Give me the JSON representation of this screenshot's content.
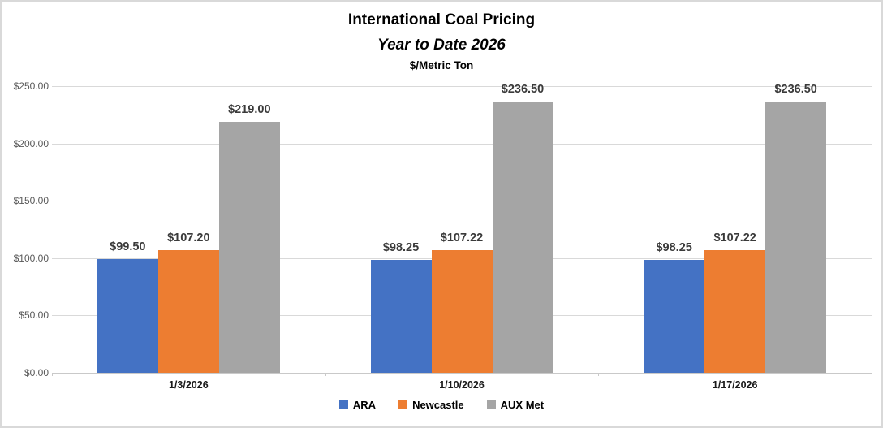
{
  "title": "International Coal Pricing",
  "subtitle": "Year to Date 2026",
  "units_label": "$/Metric Ton",
  "colors": {
    "ara": "#4472C4",
    "newcastle": "#ED7D31",
    "aux_met": "#A5A5A5",
    "gridline": "#D9D9D9",
    "axis_line": "#C9C9C9",
    "y_axis_text": "#595959",
    "data_label_text": "#3A3A3A",
    "background": "#FFFFFF",
    "border": "#D9D9D9"
  },
  "chart_data": {
    "type": "bar",
    "title": "International Coal Pricing",
    "subtitle": "Year to Date 2026",
    "ylabel": "$/Metric Ton",
    "categories": [
      "1/3/2026",
      "1/10/2026",
      "1/17/2026"
    ],
    "series": [
      {
        "name": "ARA",
        "color": "#4472C4",
        "values": [
          99.5,
          98.25,
          98.25
        ],
        "labels": [
          "$99.50",
          "$98.25",
          "$98.25"
        ]
      },
      {
        "name": "Newcastle",
        "color": "#ED7D31",
        "values": [
          107.2,
          107.22,
          107.22
        ],
        "labels": [
          "$107.20",
          "$107.22",
          "$107.22"
        ]
      },
      {
        "name": "AUX Met",
        "color": "#A5A5A5",
        "values": [
          219.0,
          236.5,
          236.5
        ],
        "labels": [
          "$219.00",
          "$236.50",
          "$236.50"
        ]
      }
    ],
    "ylim": [
      0,
      250
    ],
    "ytick_step": 50,
    "ytick_labels": [
      "$0.00",
      "$50.00",
      "$100.00",
      "$150.00",
      "$200.00",
      "$250.00"
    ],
    "grid": true,
    "legend_position": "bottom"
  }
}
